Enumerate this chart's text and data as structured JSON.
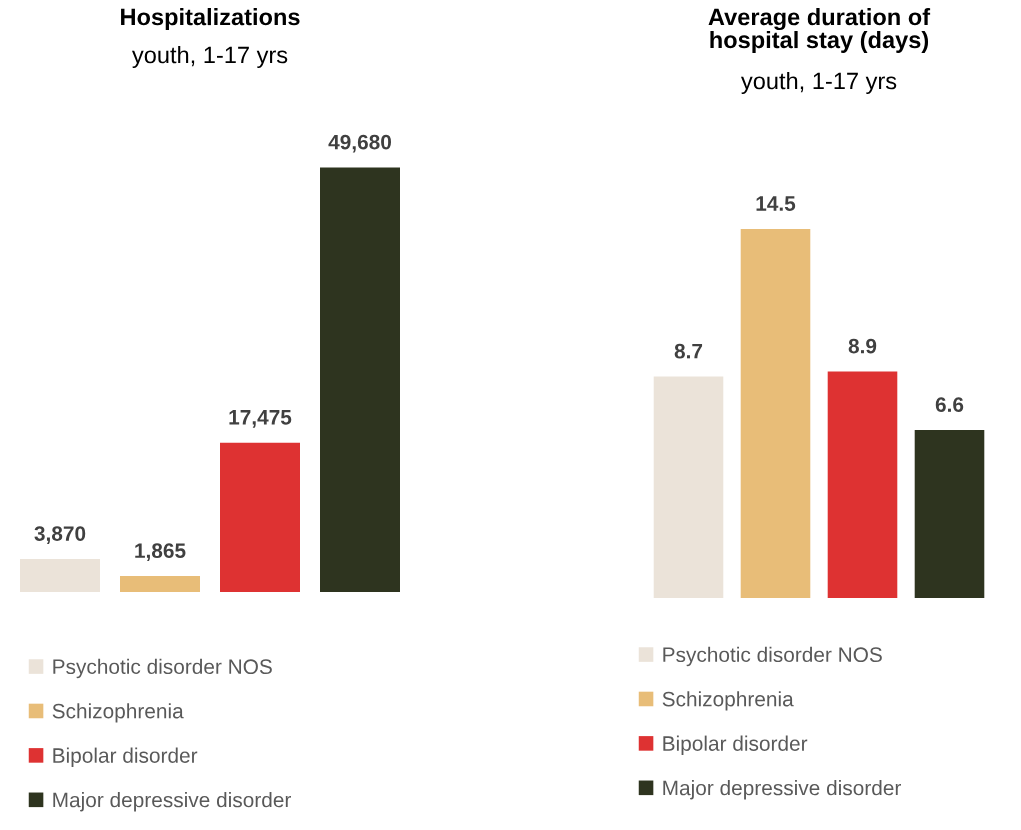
{
  "chart_data": [
    {
      "type": "bar",
      "title": "Hospitalizations",
      "subtitle": "youth, 1-17 yrs",
      "categories": [
        null
      ],
      "legend": "bottom",
      "series": [
        {
          "name": "Psychotic disorder NOS",
          "color": "#ebe3d9",
          "values": [
            3870
          ],
          "value_labels": [
            "3,870"
          ]
        },
        {
          "name": "Schizophrenia",
          "color": "#e8bd78",
          "values": [
            1865
          ],
          "value_labels": [
            "1,865"
          ]
        },
        {
          "name": "Bipolar disorder",
          "color": "#de3232",
          "values": [
            17475
          ],
          "value_labels": [
            "17,475"
          ]
        },
        {
          "name": "Major depressive disorder",
          "color": "#2e341f",
          "values": [
            49680
          ],
          "value_labels": [
            "49,680"
          ]
        }
      ]
    },
    {
      "type": "bar",
      "title": "Average duration of\nhospital stay (days)",
      "subtitle": "youth, 1-17 yrs",
      "categories": [
        null
      ],
      "legend": "bottom",
      "data_labels": true,
      "series": [
        {
          "name": "Psychotic disorder NOS",
          "color": "#ebe3d9",
          "values": [
            8.7
          ]
        },
        {
          "name": "Schizophrenia",
          "color": "#e8bd78",
          "values": [
            14.5
          ]
        },
        {
          "name": "Bipolar disorder",
          "color": "#de3232",
          "values": [
            8.9
          ]
        },
        {
          "name": "Major depressive disorder",
          "color": "#2e341f",
          "values": [
            6.6
          ]
        }
      ]
    }
  ]
}
